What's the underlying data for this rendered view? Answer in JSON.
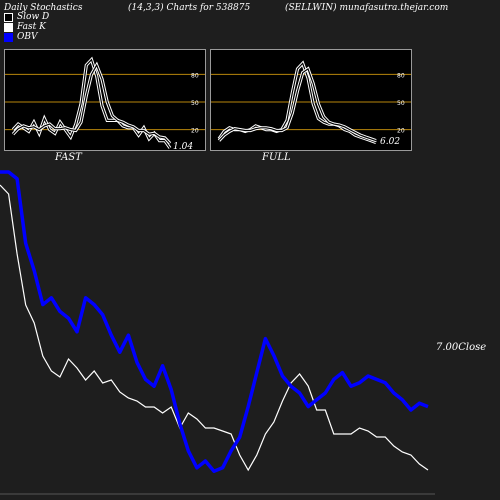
{
  "header": {
    "title": "Daily Stochastics",
    "params": "(14,3,3) Charts for 538875",
    "source": "(SELLWIN) munafasutra.thejar.com"
  },
  "legend": [
    "Slow  D",
    "Fast K",
    "OBV"
  ],
  "panels": {
    "fast_label": "FAST",
    "full_label": "FULL"
  },
  "colors": {
    "background": "#1e1e1e",
    "panel_background": "#000000",
    "reference_line": "#b8860b",
    "obv": "#0000ff",
    "price": "#ffffff"
  },
  "chart_data": [
    {
      "type": "line",
      "name": "price-obv",
      "close_label": "7.00Close",
      "series": [
        {
          "name": "Close",
          "values": [
            7.95,
            7.92,
            7.72,
            7.55,
            7.49,
            7.38,
            7.33,
            7.31,
            7.37,
            7.34,
            7.3,
            7.33,
            7.29,
            7.3,
            7.26,
            7.24,
            7.23,
            7.21,
            7.21,
            7.19,
            7.21,
            7.14,
            7.19,
            7.17,
            7.14,
            7.14,
            7.13,
            7.12,
            7.05,
            7.0,
            7.05,
            7.12,
            7.16,
            7.23,
            7.29,
            7.32,
            7.28,
            7.2,
            7.2,
            7.12,
            7.12,
            7.12,
            7.14,
            7.13,
            7.11,
            7.11,
            7.08,
            7.06,
            7.05,
            7.02,
            7.0
          ]
        },
        {
          "name": "OBV",
          "values": [
            0.95,
            0.95,
            0.93,
            0.74,
            0.66,
            0.56,
            0.58,
            0.54,
            0.52,
            0.48,
            0.58,
            0.56,
            0.53,
            0.47,
            0.42,
            0.47,
            0.39,
            0.34,
            0.32,
            0.38,
            0.31,
            0.21,
            0.13,
            0.08,
            0.1,
            0.07,
            0.08,
            0.13,
            0.17,
            0.26,
            0.36,
            0.46,
            0.41,
            0.35,
            0.32,
            0.3,
            0.26,
            0.28,
            0.3,
            0.34,
            0.36,
            0.32,
            0.33,
            0.35,
            0.34,
            0.33,
            0.3,
            0.28,
            0.25,
            0.27,
            0.26
          ]
        }
      ]
    },
    {
      "type": "line",
      "name": "fast-stochastic",
      "ylim": [
        0,
        100
      ],
      "reference_lines": [
        20,
        50,
        80
      ],
      "tick_labels": [
        "20",
        "50",
        "80"
      ],
      "last_value_label": "1.04",
      "series": [
        {
          "name": "Fast K",
          "values": [
            20,
            26,
            22,
            18,
            28,
            16,
            32,
            20,
            16,
            28,
            20,
            12,
            26,
            48,
            90,
            96,
            78,
            46,
            30,
            30,
            30,
            24,
            22,
            22,
            14,
            22,
            10,
            16,
            8,
            8,
            0
          ]
        },
        {
          "name": "Slow D",
          "values": [
            15,
            21,
            24,
            22,
            23,
            20,
            24,
            26,
            21,
            21,
            22,
            20,
            19,
            28,
            57,
            80,
            90,
            75,
            50,
            35,
            30,
            28,
            25,
            23,
            19,
            19,
            15,
            16,
            12,
            11,
            5
          ]
        }
      ]
    },
    {
      "type": "line",
      "name": "full-stochastic",
      "ylim": [
        0,
        100
      ],
      "reference_lines": [
        20,
        50,
        80
      ],
      "tick_labels": [
        "20",
        "50",
        "80"
      ],
      "last_value_label": "6.02",
      "series": [
        {
          "name": "Fast K",
          "values": [
            10,
            18,
            22,
            20,
            20,
            18,
            20,
            24,
            22,
            20,
            20,
            18,
            20,
            30,
            60,
            86,
            92,
            76,
            48,
            32,
            28,
            26,
            26,
            24,
            20,
            18,
            14,
            12,
            10,
            8,
            6
          ]
        },
        {
          "name": "Slow D",
          "values": [
            8,
            14,
            18,
            21,
            20,
            19,
            19,
            21,
            22,
            22,
            21,
            19,
            19,
            22,
            38,
            62,
            82,
            86,
            70,
            48,
            34,
            28,
            26,
            25,
            23,
            20,
            17,
            14,
            12,
            10,
            8
          ]
        }
      ]
    }
  ]
}
